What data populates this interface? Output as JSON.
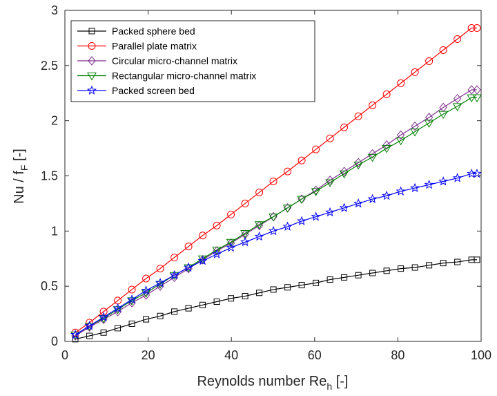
{
  "chart_data": {
    "type": "line",
    "title": "",
    "xlabel": "Reynolds number Re",
    "xlabel_sub": "h",
    "xlabel_suffix": " [-]",
    "ylabel": "Nu / f",
    "ylabel_sub": "F",
    "ylabel_suffix": " [-]",
    "xlim": [
      0,
      100
    ],
    "ylim": [
      0,
      3
    ],
    "xticks": [
      0,
      20,
      40,
      60,
      80,
      100
    ],
    "yticks": [
      0,
      0.5,
      1,
      1.5,
      2,
      2.5,
      3
    ],
    "x_tick_labels": [
      "0",
      "20",
      "40",
      "60",
      "80",
      "100"
    ],
    "y_tick_labels": [
      "0",
      "0.5",
      "1",
      "1.5",
      "2",
      "2.5",
      "3"
    ],
    "grid": false,
    "legend_position": "top-left",
    "x": [
      2.5,
      5.9,
      9.3,
      12.7,
      16.1,
      19.5,
      22.9,
      26.3,
      29.7,
      33.1,
      36.5,
      39.9,
      43.3,
      46.7,
      50.1,
      53.5,
      56.9,
      60.3,
      63.7,
      67.1,
      70.5,
      73.9,
      77.3,
      80.7,
      84.1,
      87.5,
      90.9,
      94.3,
      97.7,
      99
    ],
    "series": [
      {
        "name": "Packed sphere bed",
        "color": "#000000",
        "marker": "square",
        "values": [
          0.02,
          0.05,
          0.08,
          0.12,
          0.16,
          0.2,
          0.23,
          0.27,
          0.3,
          0.33,
          0.36,
          0.39,
          0.41,
          0.44,
          0.47,
          0.49,
          0.51,
          0.53,
          0.56,
          0.58,
          0.6,
          0.62,
          0.64,
          0.66,
          0.67,
          0.69,
          0.71,
          0.72,
          0.74,
          0.74
        ]
      },
      {
        "name": "Parallel plate matrix",
        "color": "#ff0000",
        "marker": "circle",
        "values": [
          0.08,
          0.17,
          0.27,
          0.37,
          0.47,
          0.57,
          0.66,
          0.76,
          0.86,
          0.96,
          1.05,
          1.15,
          1.25,
          1.35,
          1.45,
          1.54,
          1.64,
          1.74,
          1.84,
          1.94,
          2.04,
          2.14,
          2.24,
          2.34,
          2.44,
          2.54,
          2.64,
          2.74,
          2.84,
          2.84
        ]
      },
      {
        "name": "Circular micro-channel matrix",
        "color": "#7e2f8e",
        "marker": "diamond",
        "values": [
          0.05,
          0.13,
          0.2,
          0.27,
          0.35,
          0.42,
          0.5,
          0.58,
          0.66,
          0.74,
          0.82,
          0.89,
          0.97,
          1.05,
          1.13,
          1.21,
          1.29,
          1.37,
          1.46,
          1.54,
          1.62,
          1.7,
          1.78,
          1.87,
          1.95,
          2.03,
          2.12,
          2.2,
          2.28,
          2.28
        ]
      },
      {
        "name": "Rectangular micro-channel matrix",
        "color": "#008000",
        "marker": "triangle-down",
        "values": [
          0.06,
          0.14,
          0.21,
          0.29,
          0.37,
          0.44,
          0.52,
          0.6,
          0.67,
          0.75,
          0.83,
          0.9,
          0.98,
          1.06,
          1.13,
          1.21,
          1.29,
          1.36,
          1.44,
          1.52,
          1.6,
          1.67,
          1.75,
          1.82,
          1.9,
          1.98,
          2.06,
          2.13,
          2.21,
          2.21
        ]
      },
      {
        "name": "Packed screen bed",
        "color": "#0000ff",
        "marker": "star",
        "values": [
          0.06,
          0.14,
          0.22,
          0.3,
          0.38,
          0.46,
          0.53,
          0.6,
          0.67,
          0.73,
          0.79,
          0.85,
          0.9,
          0.95,
          1.0,
          1.04,
          1.09,
          1.13,
          1.17,
          1.21,
          1.25,
          1.29,
          1.32,
          1.36,
          1.39,
          1.42,
          1.45,
          1.48,
          1.52,
          1.52
        ]
      }
    ]
  }
}
